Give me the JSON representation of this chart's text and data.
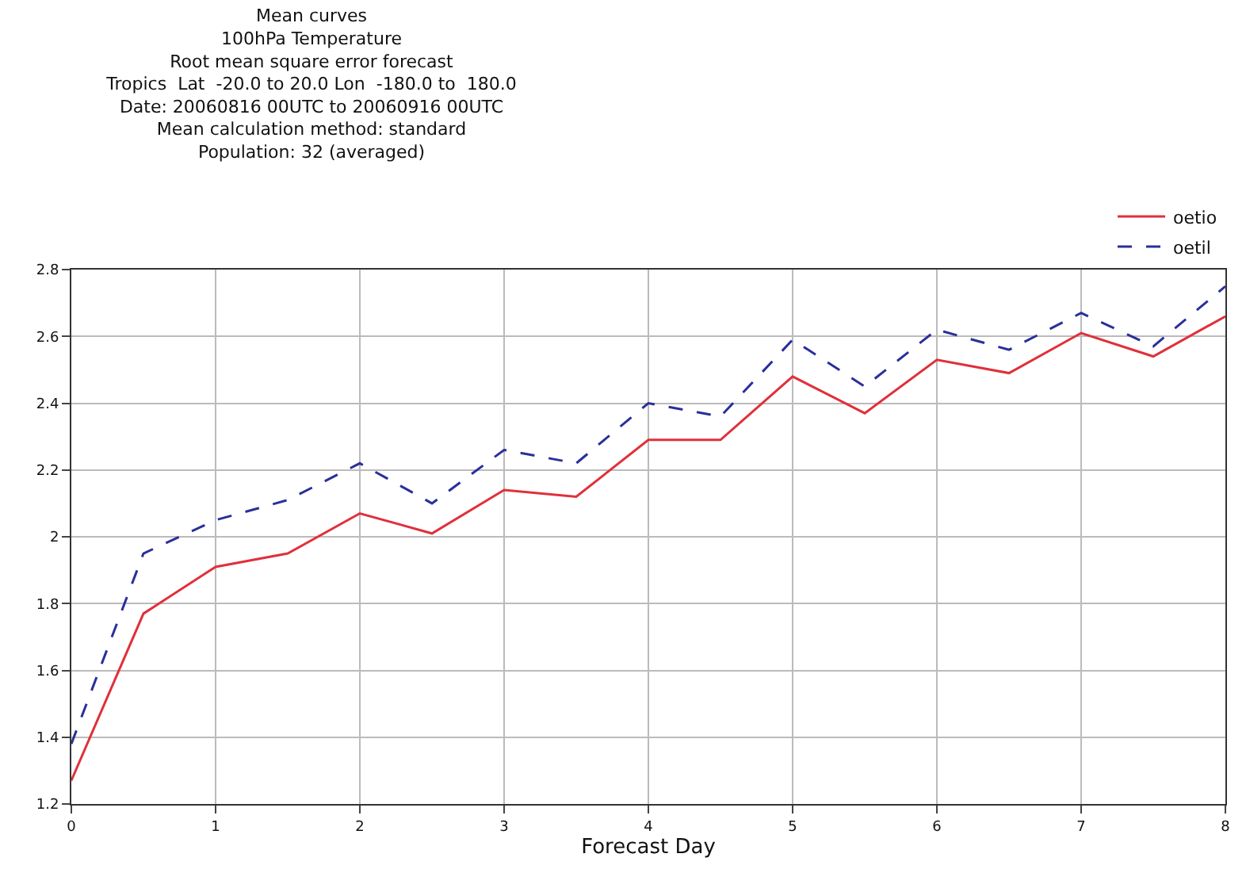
{
  "chart_data": {
    "type": "line",
    "title": "Mean curves\n100hPa Temperature\nRoot mean square error forecast\nTropics  Lat  -20.0 to 20.0 Lon  -180.0 to  180.0\nDate: 20060816 00UTC to 20060916 00UTC\nMean calculation method: standard\nPopulation: 32 (averaged)",
    "xlabel": "Forecast Day",
    "x": [
      0,
      0.5,
      1,
      1.5,
      2,
      2.5,
      3,
      3.5,
      4,
      4.5,
      5,
      5.5,
      6,
      6.5,
      7,
      7.5,
      8
    ],
    "series": [
      {
        "name": "oetio",
        "color": "#e0303a",
        "line_style": "solid",
        "values": [
          1.27,
          1.77,
          1.91,
          1.95,
          2.07,
          2.01,
          2.14,
          2.12,
          2.29,
          2.29,
          2.48,
          2.37,
          2.53,
          2.49,
          2.61,
          2.54,
          2.66
        ]
      },
      {
        "name": "oetil",
        "color": "#2a2f9a",
        "line_style": "dashed",
        "values": [
          1.38,
          1.95,
          2.05,
          2.11,
          2.22,
          2.1,
          2.26,
          2.22,
          2.4,
          2.36,
          2.59,
          2.45,
          2.62,
          2.56,
          2.67,
          2.57,
          2.75
        ]
      }
    ],
    "xlim": [
      0,
      8
    ],
    "xticks": [
      0,
      1,
      2,
      3,
      4,
      5,
      6,
      7,
      8
    ],
    "ylim": [
      1.2,
      2.8
    ],
    "yticks": [
      1.2,
      1.4,
      1.6,
      1.8,
      2,
      2.2,
      2.4,
      2.6,
      2.8
    ],
    "grid": true,
    "legend": "top right",
    "marker": "none"
  }
}
